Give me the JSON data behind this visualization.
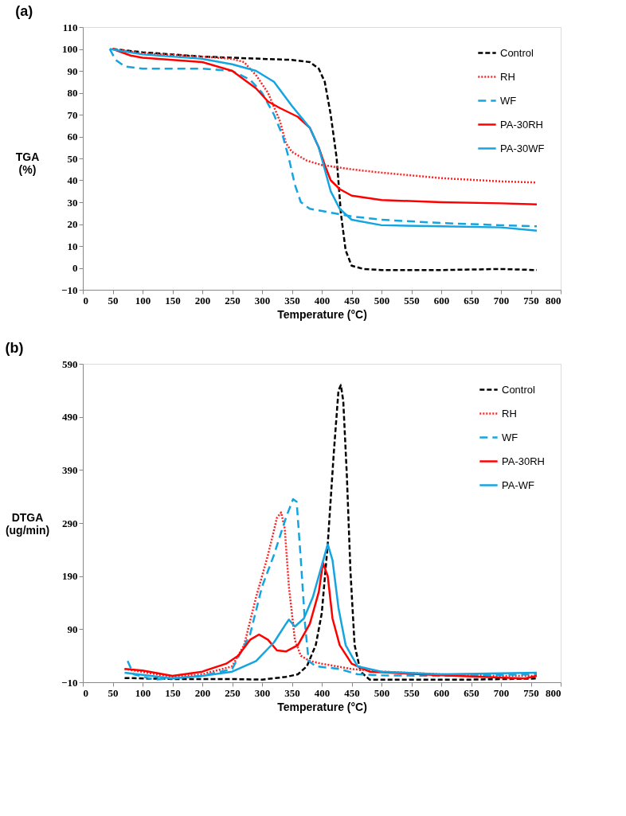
{
  "chart_data": [
    {
      "type": "line",
      "title": "(a)",
      "xlabel": "Temperature (°C)",
      "ylabel": "TGA (%)",
      "xlim": [
        0,
        800
      ],
      "xticks": [
        0,
        50,
        100,
        150,
        200,
        250,
        300,
        350,
        400,
        450,
        500,
        550,
        600,
        650,
        700,
        750,
        800
      ],
      "ylim": [
        -10,
        110
      ],
      "yticks": [
        -10,
        0,
        10,
        20,
        30,
        40,
        50,
        60,
        70,
        80,
        90,
        100,
        110
      ],
      "grid": false,
      "legend": "top right",
      "series": [
        {
          "name": "Control",
          "color": "#000000",
          "line_style": "dashed",
          "x": [
            50,
            100,
            150,
            200,
            250,
            300,
            350,
            380,
            395,
            405,
            415,
            425,
            432,
            440,
            450,
            470,
            500,
            600,
            700,
            760
          ],
          "values": [
            100,
            98.5,
            97.5,
            96.5,
            96,
            95.5,
            95,
            94,
            91,
            85,
            70,
            50,
            25,
            8,
            1,
            -0.5,
            -1,
            -1,
            -0.5,
            -1
          ]
        },
        {
          "name": "RH",
          "color": "#ff2020",
          "line_style": "dotted",
          "x": [
            50,
            100,
            200,
            250,
            270,
            290,
            310,
            330,
            340,
            350,
            375,
            400,
            450,
            500,
            600,
            700,
            760
          ],
          "values": [
            100,
            98,
            96.5,
            95.5,
            94,
            88,
            80,
            67,
            57,
            53,
            49,
            47,
            45,
            43.5,
            41,
            39.5,
            39
          ]
        },
        {
          "name": "WF",
          "color": "#14a5e0",
          "line_style": "longdash",
          "x": [
            45,
            55,
            70,
            100,
            150,
            200,
            250,
            280,
            300,
            320,
            335,
            345,
            355,
            365,
            380,
            420,
            450,
            500,
            600,
            700,
            760
          ],
          "values": [
            100,
            95,
            92,
            91,
            91,
            91,
            90,
            86,
            80,
            70,
            60,
            50,
            38,
            30,
            27,
            25,
            23.5,
            22,
            20.5,
            19.5,
            19
          ]
        },
        {
          "name": "PA-30RH",
          "color": "#ff0000",
          "line_style": "solid",
          "x": [
            50,
            80,
            100,
            150,
            200,
            250,
            290,
            310,
            330,
            360,
            380,
            395,
            405,
            415,
            430,
            450,
            500,
            600,
            700,
            760
          ],
          "values": [
            100,
            97,
            96,
            95,
            94,
            90,
            82,
            76,
            73,
            69,
            64,
            55,
            47,
            40,
            36,
            33,
            31,
            30,
            29.5,
            29
          ]
        },
        {
          "name": "PA-30WF",
          "color": "#14a5e0",
          "line_style": "solid",
          "x": [
            45,
            100,
            150,
            200,
            250,
            290,
            320,
            350,
            380,
            395,
            405,
            415,
            430,
            450,
            500,
            600,
            700,
            760
          ],
          "values": [
            100,
            97.5,
            96.5,
            95.5,
            93,
            90,
            85,
            74,
            64,
            55,
            45,
            35,
            27,
            22,
            19.5,
            19,
            18.5,
            17
          ]
        }
      ]
    },
    {
      "type": "line",
      "title": "(b)",
      "xlabel": "Temperature (°C)",
      "ylabel": "DTGA (ug/min)",
      "xlim": [
        0,
        800
      ],
      "xticks": [
        0,
        50,
        100,
        150,
        200,
        250,
        300,
        350,
        400,
        450,
        500,
        550,
        600,
        650,
        700,
        750,
        800
      ],
      "ylim": [
        -10,
        590
      ],
      "yticks": [
        -10,
        90,
        190,
        290,
        390,
        490,
        590
      ],
      "grid": false,
      "legend": "top right",
      "series": [
        {
          "name": "Control",
          "color": "#000000",
          "line_style": "dashed",
          "x": [
            70,
            150,
            250,
            300,
            340,
            360,
            375,
            390,
            400,
            410,
            420,
            428,
            432,
            436,
            442,
            448,
            455,
            465,
            480,
            550,
            650,
            760
          ],
          "values": [
            -2,
            -4,
            -4,
            -5,
            0,
            5,
            20,
            60,
            120,
            250,
            420,
            540,
            550,
            520,
            380,
            200,
            60,
            10,
            -5,
            -5,
            -5,
            -3
          ]
        },
        {
          "name": "RH",
          "color": "#ff2020",
          "line_style": "dotted",
          "x": [
            70,
            150,
            200,
            250,
            270,
            290,
            310,
            325,
            332,
            338,
            345,
            355,
            365,
            380,
            400,
            450,
            500,
            600,
            700,
            760
          ],
          "values": [
            15,
            0,
            5,
            20,
            60,
            150,
            230,
            300,
            310,
            280,
            170,
            70,
            40,
            30,
            25,
            15,
            10,
            5,
            2,
            2
          ]
        },
        {
          "name": "WF",
          "color": "#14a5e0",
          "line_style": "longdash",
          "x": [
            75,
            85,
            120,
            200,
            250,
            280,
            300,
            320,
            340,
            352,
            358,
            365,
            372,
            378,
            390,
            430,
            460,
            500,
            600,
            760
          ],
          "values": [
            30,
            5,
            -5,
            2,
            15,
            80,
            170,
            230,
            300,
            335,
            330,
            220,
            100,
            30,
            20,
            15,
            5,
            3,
            2,
            5
          ]
        },
        {
          "name": "PA-30RH",
          "color": "#ff0000",
          "line_style": "solid",
          "x": [
            70,
            100,
            150,
            200,
            240,
            260,
            280,
            295,
            310,
            325,
            340,
            360,
            380,
            395,
            402,
            410,
            418,
            430,
            450,
            480,
            600,
            740,
            760
          ],
          "values": [
            15,
            12,
            2,
            10,
            25,
            40,
            70,
            80,
            70,
            50,
            48,
            60,
            100,
            160,
            215,
            190,
            110,
            60,
            25,
            10,
            3,
            -3,
            2
          ]
        },
        {
          "name": "PA-WF",
          "color": "#14a5e0",
          "line_style": "solid",
          "x": [
            70,
            150,
            200,
            250,
            290,
            320,
            340,
            345,
            355,
            370,
            385,
            400,
            410,
            418,
            428,
            440,
            460,
            500,
            600,
            760
          ],
          "values": [
            8,
            -3,
            2,
            10,
            30,
            65,
            100,
            108,
            95,
            110,
            150,
            210,
            250,
            220,
            130,
            60,
            20,
            10,
            5,
            8
          ]
        }
      ]
    }
  ]
}
